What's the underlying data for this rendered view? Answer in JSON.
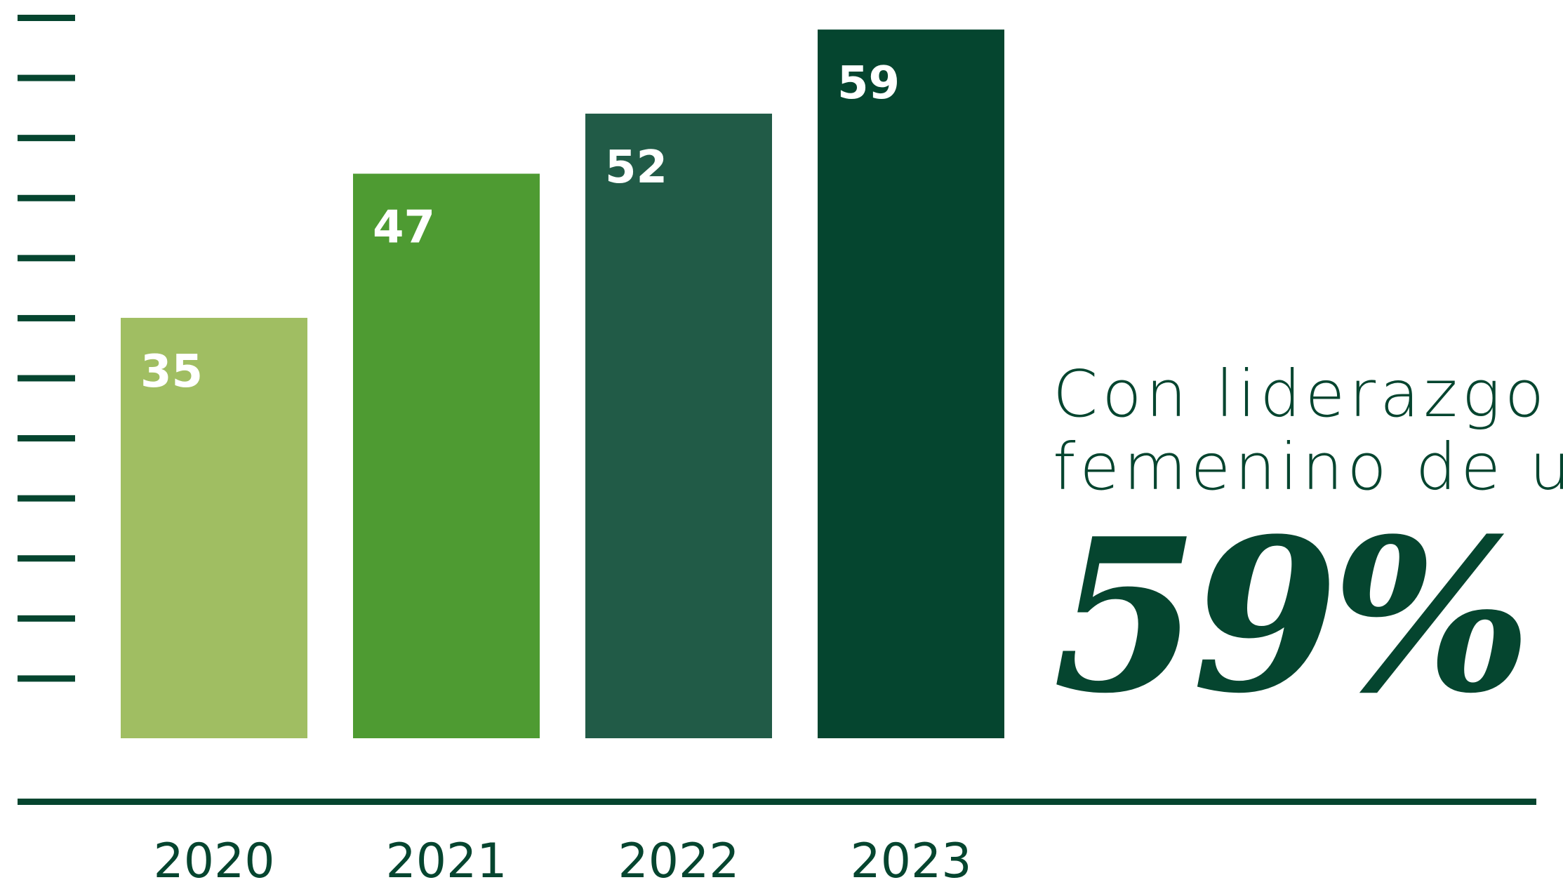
{
  "chart_data": {
    "type": "bar",
    "categories": [
      "2020",
      "2021",
      "2022",
      "2023"
    ],
    "values": [
      35,
      47,
      52,
      59
    ],
    "title": "",
    "xlabel": "",
    "ylabel": "",
    "ylim": [
      0,
      60
    ],
    "grid": false,
    "bar_colors": [
      "#a0be62",
      "#4e9b32",
      "#215b47",
      "#05452f"
    ],
    "axis_color": "#05452f",
    "label_color": "#ffffff"
  },
  "callout": {
    "line1": "Con liderazgo",
    "line2": "femenino de un",
    "value": "59%"
  }
}
